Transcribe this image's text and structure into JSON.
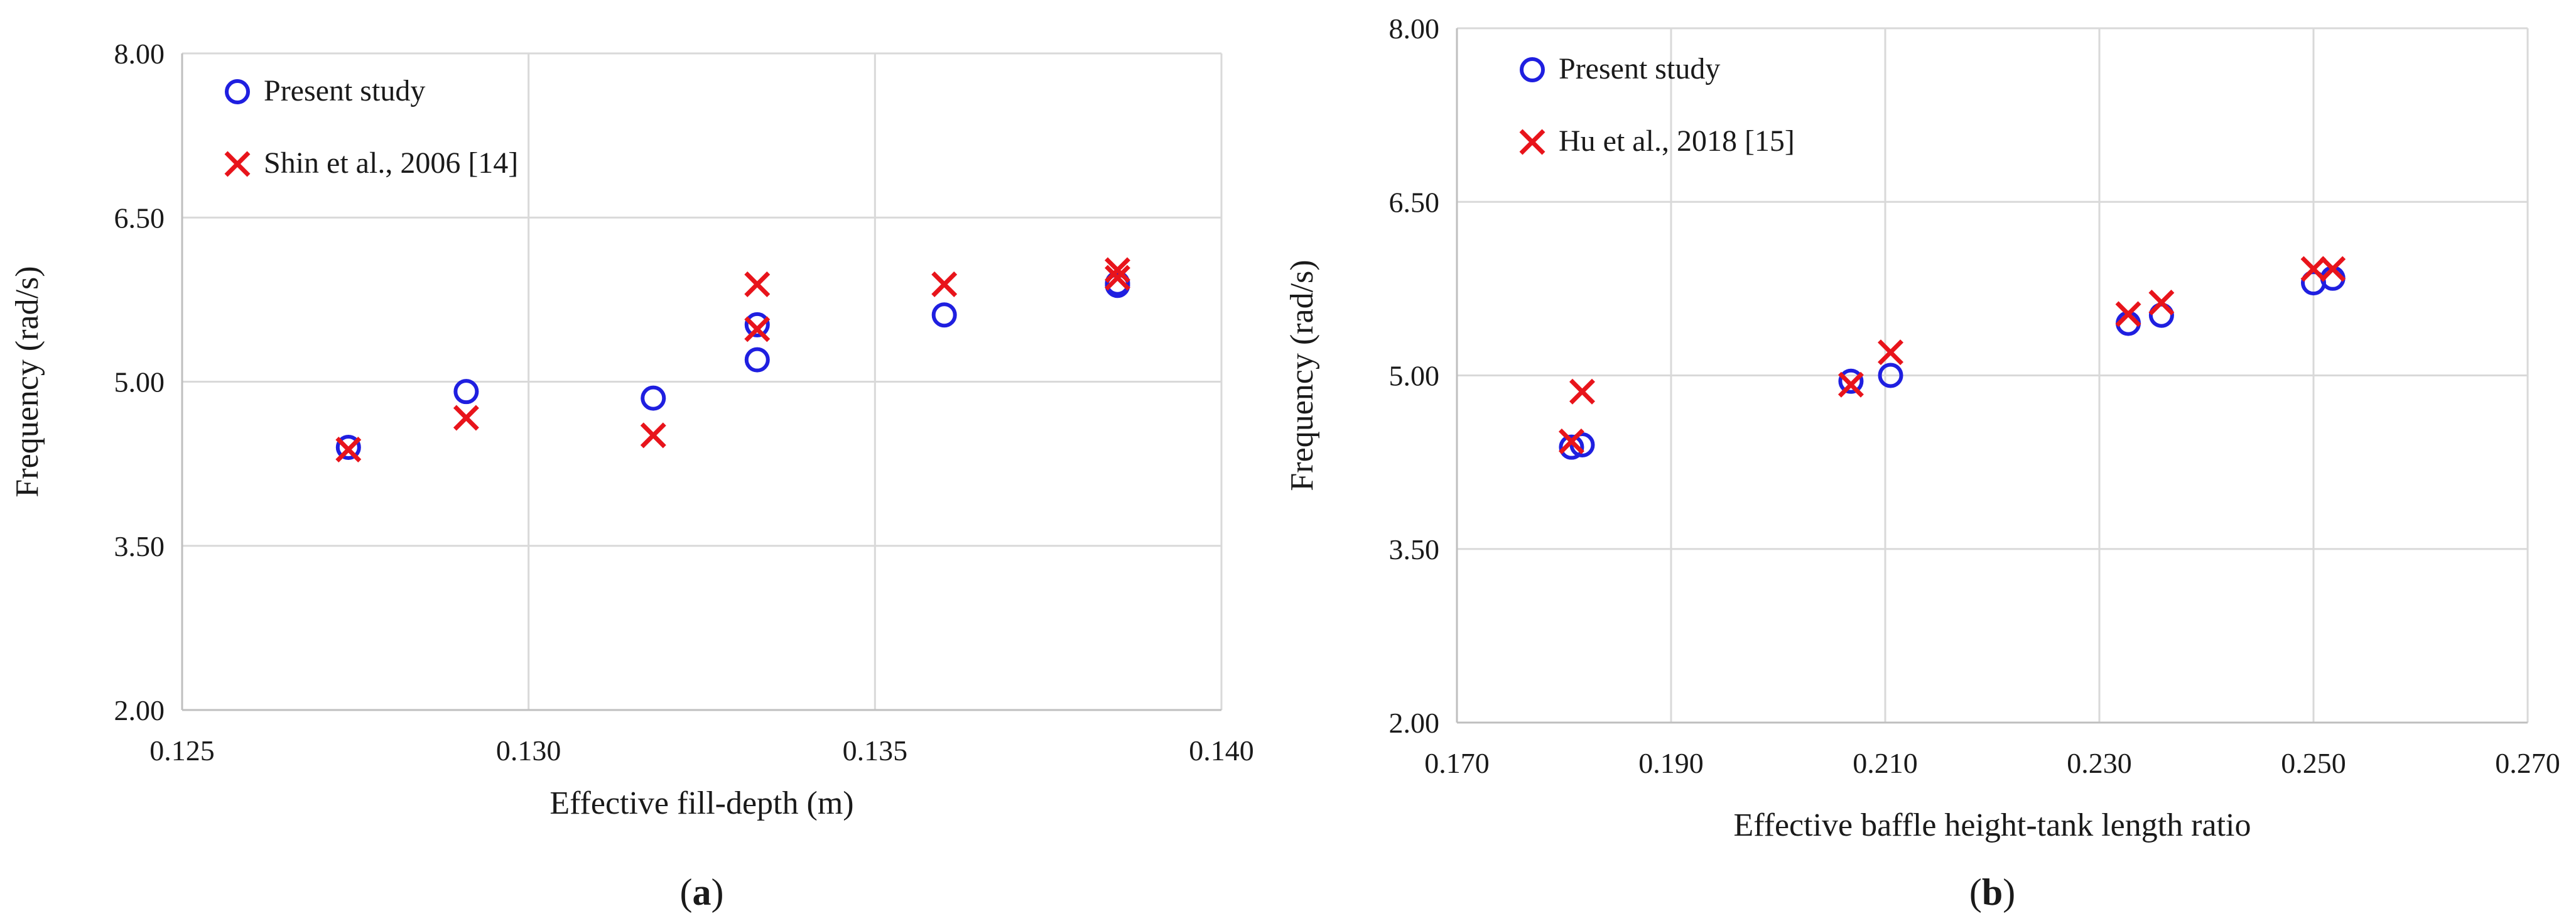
{
  "chart_data": [
    {
      "type": "scatter",
      "title": "",
      "xlabel": "Effective fill-depth (m)",
      "ylabel": "Frequency (rad/s)",
      "xlim": [
        0.125,
        0.14
      ],
      "ylim": [
        2.0,
        8.0
      ],
      "xticks": [
        "0.125",
        "0.130",
        "0.135",
        "0.140"
      ],
      "yticks": [
        "2.00",
        "3.50",
        "5.00",
        "6.50",
        "8.00"
      ],
      "grid": true,
      "legend": "top-left",
      "panel_label": "(a)",
      "panel_letter": "a",
      "series": [
        {
          "name": "Present study",
          "marker": "circle",
          "color": "#1f1fe0",
          "points": [
            [
              0.1274,
              4.4
            ],
            [
              0.1291,
              4.91
            ],
            [
              0.1318,
              4.85
            ],
            [
              0.1333,
              5.2
            ],
            [
              0.1333,
              5.52
            ],
            [
              0.136,
              5.61
            ],
            [
              0.1385,
              5.88
            ],
            [
              0.1385,
              5.9
            ]
          ]
        },
        {
          "name": "Shin et al., 2006 [14]",
          "marker": "x",
          "color": "#e8141b",
          "points": [
            [
              0.1274,
              4.38
            ],
            [
              0.1291,
              4.67
            ],
            [
              0.1318,
              4.51
            ],
            [
              0.1333,
              5.48
            ],
            [
              0.1333,
              5.89
            ],
            [
              0.136,
              5.89
            ],
            [
              0.1385,
              6.02
            ],
            [
              0.1385,
              5.95
            ]
          ]
        }
      ]
    },
    {
      "type": "scatter",
      "title": "",
      "xlabel": "Effective baffle height-tank length ratio",
      "ylabel": "Frequency (rad/s)",
      "xlim": [
        0.17,
        0.27
      ],
      "ylim": [
        2.0,
        8.0
      ],
      "xticks": [
        "0.170",
        "0.190",
        "0.210",
        "0.230",
        "0.250",
        "0.270"
      ],
      "yticks": [
        "2.00",
        "3.50",
        "5.00",
        "6.50",
        "8.00"
      ],
      "grid": true,
      "legend": "top-left",
      "panel_label": "(b)",
      "panel_letter": "b",
      "series": [
        {
          "name": "Present study",
          "marker": "circle",
          "color": "#1f1fe0",
          "points": [
            [
              0.1807,
              4.38
            ],
            [
              0.1817,
              4.4
            ],
            [
              0.2068,
              4.95
            ],
            [
              0.2105,
              5.0
            ],
            [
              0.2327,
              5.45
            ],
            [
              0.2358,
              5.52
            ],
            [
              0.25,
              5.8
            ],
            [
              0.2518,
              5.84
            ]
          ]
        },
        {
          "name": "Hu et al., 2018 [15]",
          "marker": "x",
          "color": "#e8141b",
          "points": [
            [
              0.1807,
              4.43
            ],
            [
              0.1817,
              4.86
            ],
            [
              0.2068,
              4.92
            ],
            [
              0.2105,
              5.2
            ],
            [
              0.2327,
              5.53
            ],
            [
              0.2358,
              5.63
            ],
            [
              0.25,
              5.92
            ],
            [
              0.2518,
              5.92
            ]
          ]
        }
      ]
    }
  ]
}
